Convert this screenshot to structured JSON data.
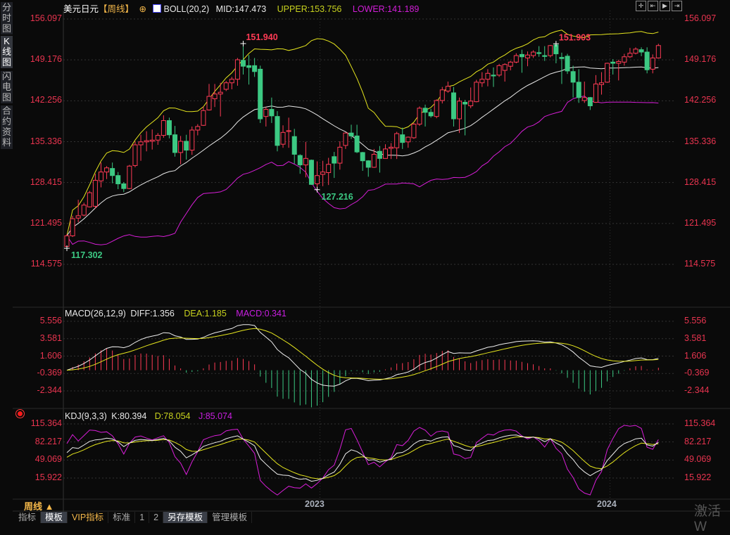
{
  "sidebar": {
    "tabs": [
      {
        "label": "分时图",
        "active": false
      },
      {
        "label": "K线图",
        "active": true
      },
      {
        "label": "闪电图",
        "active": false
      },
      {
        "label": "合约资料",
        "active": false
      }
    ]
  },
  "header": {
    "symbol": "美元日元",
    "period_tag": "【周线】",
    "boll": {
      "name": "BOLL(20,2)",
      "mid": "MID:147.473",
      "upper": "UPPER:153.756",
      "lower": "LOWER:141.189"
    }
  },
  "toolbar": {
    "icons": [
      "crosshair-icon",
      "zoom-left-icon",
      "zoom-right-icon",
      "move-right-icon"
    ]
  },
  "colors": {
    "up": "#ff3b55",
    "down": "#3cc983",
    "mid": "#e8e8e8",
    "upper": "#e6e61e",
    "lower": "#d81ed8",
    "axis": "#e8344f"
  },
  "macd_header": {
    "name": "MACD(26,12,9)",
    "diff": "DIFF:1.356",
    "dea": "DEA:1.185",
    "macd": "MACD:0.341"
  },
  "kdj_header": {
    "name": "KDJ(9,3,3)",
    "k": "K:80.394",
    "d": "D:78.054",
    "j": "J:85.074"
  },
  "bottom": {
    "period": "周线 ▲",
    "tabs": [
      {
        "label": "指标",
        "active": false
      },
      {
        "label": "模板",
        "active": true
      },
      {
        "label": "VIP指标",
        "active": false
      },
      {
        "label": "标准",
        "active": false
      },
      {
        "label": "1",
        "active": false
      },
      {
        "label": "2",
        "active": false
      },
      {
        "label": "另存模板",
        "active": true
      },
      {
        "label": "管理模板",
        "active": false
      }
    ],
    "watermark": "激活 W"
  },
  "chart_data": [
    {
      "type": "candlestick",
      "title": "美元日元【周线】",
      "yticks": [
        "156.097",
        "149.176",
        "142.256",
        "135.336",
        "128.415",
        "121.495",
        "114.575"
      ],
      "ylim": [
        114.575,
        156.097
      ],
      "xticks": [
        {
          "label": "2023",
          "index": 44
        },
        {
          "label": "2024",
          "index": 95
        }
      ],
      "annotations": [
        {
          "text": "117.302",
          "index": 0,
          "kind": "low"
        },
        {
          "text": "151.940",
          "index": 31,
          "kind": "high"
        },
        {
          "text": "127.216",
          "index": 44,
          "kind": "low"
        },
        {
          "text": "151.903",
          "index": 86,
          "kind": "high"
        }
      ],
      "overlays": [
        "BOLL MID",
        "BOLL UPPER",
        "BOLL LOWER"
      ],
      "ohlc": [
        [
          117.6,
          119.7,
          117.302,
          119.4
        ],
        [
          119.4,
          122.8,
          119.2,
          122.3
        ],
        [
          122.4,
          125.5,
          121.7,
          122.8
        ],
        [
          122.9,
          125.0,
          122.7,
          124.6
        ],
        [
          124.3,
          127.0,
          124.2,
          126.7
        ],
        [
          124.4,
          129.9,
          124.0,
          128.8
        ],
        [
          128.7,
          131.8,
          127.6,
          130.2
        ],
        [
          130.2,
          131.2,
          129.0,
          130.9
        ],
        [
          130.8,
          131.8,
          128.3,
          129.6
        ],
        [
          129.6,
          130.2,
          127.3,
          128.2
        ],
        [
          128.2,
          128.5,
          126.8,
          127.4
        ],
        [
          127.4,
          131.4,
          127.3,
          131.2
        ],
        [
          131.3,
          135.4,
          131.0,
          134.8
        ],
        [
          134.8,
          136.5,
          132.1,
          135.3
        ],
        [
          135.3,
          137.1,
          133.7,
          135.5
        ],
        [
          135.4,
          137.4,
          134.0,
          135.6
        ],
        [
          135.6,
          136.8,
          134.8,
          136.4
        ],
        [
          136.4,
          139.8,
          136.0,
          138.9
        ],
        [
          138.9,
          139.4,
          135.9,
          136.5
        ],
        [
          136.5,
          138.0,
          132.8,
          133.5
        ],
        [
          133.5,
          136.3,
          131.5,
          135.4
        ],
        [
          135.4,
          136.5,
          132.3,
          133.9
        ],
        [
          133.9,
          137.9,
          133.1,
          137.3
        ],
        [
          137.3,
          138.3,
          136.4,
          137.9
        ],
        [
          138.1,
          141.3,
          138.0,
          140.6
        ],
        [
          140.7,
          145.1,
          140.6,
          143.0
        ],
        [
          142.6,
          145.1,
          141.2,
          143.4
        ],
        [
          143.4,
          145.3,
          139.6,
          143.7
        ],
        [
          144.2,
          145.6,
          143.9,
          145.3
        ],
        [
          145.3,
          146.3,
          144.2,
          145.9
        ],
        [
          145.9,
          149.5,
          144.8,
          149.2
        ],
        [
          149.1,
          151.94,
          146.7,
          148.1
        ],
        [
          148.2,
          150.0,
          145.0,
          147.9
        ],
        [
          148.2,
          149.5,
          146.3,
          147.2
        ],
        [
          147.6,
          148.2,
          138.5,
          139.2
        ],
        [
          139.6,
          141.2,
          137.9,
          140.8
        ],
        [
          140.8,
          142.8,
          138.5,
          139.7
        ],
        [
          139.6,
          140.5,
          133.7,
          134.7
        ],
        [
          134.9,
          138.1,
          134.3,
          136.9
        ],
        [
          137.1,
          139.4,
          134.3,
          137.2
        ],
        [
          136.2,
          137.5,
          131.6,
          133.2
        ],
        [
          133.0,
          133.2,
          129.9,
          131.4
        ],
        [
          131.4,
          135.3,
          129.3,
          132.5
        ],
        [
          132.2,
          132.3,
          128.0,
          128.1
        ],
        [
          128.2,
          132.0,
          127.216,
          129.6
        ],
        [
          129.8,
          132.1,
          127.8,
          130.2
        ],
        [
          130.1,
          132.6,
          128.0,
          131.5
        ],
        [
          132.8,
          133.6,
          129.2,
          131.7
        ],
        [
          131.7,
          135.4,
          130.6,
          134.4
        ],
        [
          134.7,
          136.9,
          134.1,
          136.8
        ],
        [
          136.8,
          138.2,
          135.8,
          136.3
        ],
        [
          136.3,
          138.2,
          133.4,
          133.6
        ],
        [
          133.5,
          133.6,
          130.4,
          132.1
        ],
        [
          132.1,
          132.2,
          129.4,
          131.0
        ],
        [
          131.0,
          134.1,
          130.9,
          133.2
        ],
        [
          133.7,
          134.6,
          130.1,
          132.5
        ],
        [
          132.5,
          134.9,
          132.5,
          134.1
        ],
        [
          134.2,
          135.1,
          132.4,
          134.4
        ],
        [
          134.3,
          137.0,
          132.4,
          136.7
        ],
        [
          136.5,
          137.7,
          134.1,
          135.2
        ],
        [
          135.3,
          136.2,
          134.3,
          136.1
        ],
        [
          136.0,
          138.5,
          135.8,
          138.3
        ],
        [
          138.3,
          141.3,
          138.0,
          141.0
        ],
        [
          141.0,
          141.6,
          137.9,
          140.3
        ],
        [
          140.3,
          140.9,
          139.4,
          139.7
        ],
        [
          139.6,
          142.5,
          139.3,
          142.3
        ],
        [
          142.3,
          144.6,
          141.8,
          144.1
        ],
        [
          143.9,
          145.5,
          143.6,
          144.7
        ],
        [
          143.6,
          144.6,
          137.9,
          139.2
        ],
        [
          139.2,
          142.8,
          136.8,
          142.2
        ],
        [
          142.0,
          142.4,
          136.4,
          141.7
        ],
        [
          141.4,
          144.5,
          141.0,
          142.2
        ],
        [
          142.1,
          145.8,
          142.0,
          145.4
        ],
        [
          145.3,
          147.1,
          144.6,
          145.9
        ],
        [
          145.9,
          147.6,
          144.7,
          146.9
        ],
        [
          146.6,
          147.9,
          144.6,
          146.5
        ],
        [
          146.6,
          148.5,
          146.3,
          148.2
        ],
        [
          147.4,
          148.6,
          145.5,
          148.4
        ],
        [
          148.1,
          149.0,
          147.4,
          148.8
        ],
        [
          148.8,
          150.3,
          148.6,
          149.9
        ],
        [
          150.1,
          150.9,
          147.0,
          149.7
        ],
        [
          149.5,
          150.6,
          148.1,
          150.0
        ],
        [
          149.9,
          150.8,
          149.5,
          150.5
        ],
        [
          150.4,
          151.5,
          149.7,
          150.3
        ],
        [
          149.9,
          151.5,
          149.0,
          149.8
        ],
        [
          149.9,
          151.7,
          149.6,
          151.6
        ],
        [
          151.7,
          151.903,
          148.6,
          150.2
        ],
        [
          149.6,
          150.4,
          145.1,
          149.4
        ],
        [
          149.8,
          150.2,
          146.8,
          147.3
        ],
        [
          147.2,
          148.2,
          142.8,
          145.4
        ],
        [
          145.4,
          147.6,
          141.9,
          142.8
        ],
        [
          142.3,
          145.5,
          141.9,
          142.8
        ],
        [
          142.8,
          142.9,
          140.7,
          141.4
        ],
        [
          142.0,
          146.6,
          141.9,
          145.1
        ],
        [
          145.0,
          147.1,
          143.3,
          145.3
        ],
        [
          145.4,
          148.7,
          145.3,
          148.6
        ],
        [
          148.8,
          149.3,
          146.7,
          148.6
        ],
        [
          148.6,
          149.2,
          145.7,
          148.9
        ],
        [
          148.8,
          150.2,
          148.2,
          149.7
        ],
        [
          149.7,
          151.2,
          149.5,
          150.3
        ],
        [
          150.3,
          151.3,
          150.1,
          151.0
        ],
        [
          150.9,
          151.3,
          149.8,
          150.5
        ],
        [
          150.5,
          151.3,
          146.9,
          147.5
        ],
        [
          147.6,
          150.1,
          146.9,
          149.5
        ],
        [
          149.5,
          151.9,
          149.4,
          151.6
        ]
      ]
    },
    {
      "type": "line",
      "title": "MACD(26,12,9)",
      "yticks": [
        "5.556",
        "3.581",
        "1.606",
        "-0.369",
        "-2.344"
      ],
      "ylim": [
        -2.344,
        5.556
      ],
      "series": [
        {
          "name": "DIFF"
        },
        {
          "name": "DEA"
        },
        {
          "name": "MACD"
        }
      ]
    },
    {
      "type": "line",
      "title": "KDJ(9,3,3)",
      "yticks": [
        "115.364",
        "82.217",
        "49.069",
        "15.922"
      ],
      "ylim": [
        15.922,
        115.364
      ],
      "series": [
        {
          "name": "K"
        },
        {
          "name": "D"
        },
        {
          "name": "J"
        }
      ]
    }
  ]
}
